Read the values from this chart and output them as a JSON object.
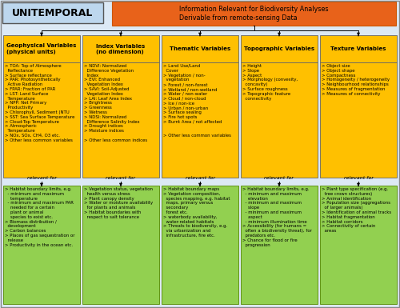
{
  "title_text": "Information Relevant for Biodiversity Analyses\nDerivable from remote-sensing Data",
  "unitemporal_text": "UNITEMPORAL",
  "title_bg": "#E8621A",
  "unitemporal_bg": "#BDD7EE",
  "column_header_bg": "#FFC000",
  "bottom_box_bg": "#92D050",
  "fig_bg": "#DCE9F5",
  "relevant_for_text": "relevant for",
  "border_color": "#999999",
  "columns": [
    {
      "header": "Geophysical Variables\n(physical units)",
      "body": "> TOA: Top of Atmosphere\n  Reflectance\n> Surface reflectance\n> PAR: Photosynthetically\n  Active Radiation\n> FPAR: Fraction of PAR\n> LST: Land Surface\n  Temperature\n> NPP: Net Primary\n  Productivity\n> Chlorophyll, Sediment (NTU\n> SST: Sea Surface Temperature\n> Cloud-Top Temperature\n> Atmospheric\n  Temperature\n> NOx, SOx, CH4, O3 etc.\n> Other less common variables",
      "bottom": "> Habitat boundary limits, e.g.\n  - minimum and maximum\n    temperature\n  - minimum and maximum PAR\n    needed for a certain\n    plant or animal\n    species to exist etc.\n> Biomass distribution /\n  development\n> Carbon balances\n> Places of gas sequestration or\n  release\n> Productivity in the ocean etc."
    },
    {
      "header": "Index Variables\n(no dimension)",
      "body": "> NDVI: Normalized\n  Difference Vegetation\n  Index\n> EVI: Enhanced\n  Vegetation Index\n> SAVI: Soil-Adjusted\n  Vegetation Index\n> LAI: Leaf Area Index\n> Brightness\n> Greenness\n> Wetness\n> NDSI: Normalized\n  Difference Salinity Index\n> Drought indices\n> Moisture indices\n\n> Other less common indices",
      "bottom": "> Vegetation status, vegetation\n  health versus stress\n> Plant canopy density\n> Water or moisture availability\n  for plants and animals\n> Habitat boundaries with\n  respect to salt tolerance"
    },
    {
      "header": "Thematic Variables",
      "body": "> Land Use/Land\n  Cover\n> Vegetation / non-\n  vegetation\n> Forest / non-forest\n> Wetland / non-wetland\n> Water / non-water\n> Cloud / non-cloud\n> Ice / non-ice\n> Urban / non-urban\n> Surface sealing\n> Fire hot spots\n> Burnt Area / not affected\n\n\n> Other less common variables",
      "bottom": "> Habitat boundary maps\n> Vegetation composition,\n  species mapping, e.g. habitat\n  maps, primary versus\n  secondary\n  forest etc.\n> waterbody availability,\n  water-related habitats\n> Threats to biodiversity, e.g.\n  via urbanization and\n  infrastructure, fire etc."
    },
    {
      "header": "Topographic Variables",
      "body": "> Height\n> Slope\n> Aspect\n> Morphology (convexity,\n  concavity)\n> Surface roughness\n> Topographic feature\n  connectivity",
      "bottom": "> Habitat boundary limits, e.g.\n  - minimum and maximum\n    elevation\n  - minimum and maximum\n    slope\n  - minimum and maximum\n    aspect\n  - minimum illumination time\n> Accessibility (for humans =\n  often a biodiversity threat), for\n  predators etc.\n> Chance for flood or fire\n  progression"
    },
    {
      "header": "Texture Variables",
      "body": "> Object size\n> Object shape\n> Compactness\n> Homogeneity / heterogeneity\n> Neighbourhood relationships\n> Measures of fragmentation\n> Measures of connectivity",
      "bottom": "> Plant type specification (e.g.\n  tree crown structures)\n> Animal identification\n> Population size (aggregations\n  of larger animals)\n> Identification of animal tracks\n> Habitat fragmentation\n> Habitat corridors\n> Connectivity of certain\n  areas"
    }
  ]
}
